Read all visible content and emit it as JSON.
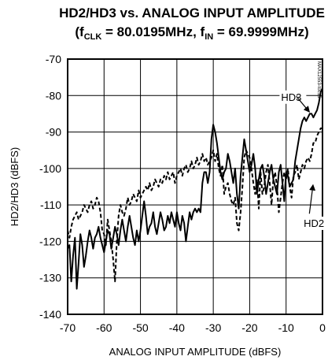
{
  "chart_data": {
    "type": "line",
    "title": "HD2/HD3 vs. ANALOG INPUT AMPLITUDE",
    "subtitle_parts": {
      "open": "(f",
      "clk_sub": "CLK",
      "mid": " = 80.0195MHz, f",
      "in_sub": "IN",
      "close": " = 69.9999MHz)"
    },
    "xlabel": "ANALOG INPUT AMPLITUDE (dBFS)",
    "ylabel": "HD2/HD3 (dBFS)",
    "xlim": [
      -70,
      0
    ],
    "ylim": [
      -140,
      -70
    ],
    "xticks": [
      -70,
      -60,
      -50,
      -40,
      -30,
      -20,
      -10,
      0
    ],
    "yticks": [
      -70,
      -80,
      -90,
      -100,
      -110,
      -120,
      -130,
      -140
    ],
    "grid": true,
    "side_code": "MAX12553-toc15",
    "annotations": [
      {
        "text": "HD3",
        "series": "HD3"
      },
      {
        "text": "HD2",
        "series": "HD2"
      }
    ],
    "series": [
      {
        "name": "HD3",
        "style": "solid",
        "x": [
          -70,
          -69.5,
          -69,
          -68.5,
          -68,
          -67.5,
          -67,
          -66.5,
          -66,
          -65.5,
          -65,
          -64.5,
          -64,
          -63.5,
          -63,
          -62.5,
          -62,
          -61.5,
          -61,
          -60.5,
          -60,
          -59.5,
          -59,
          -58.5,
          -58,
          -57.5,
          -57,
          -56.5,
          -56,
          -55.5,
          -55,
          -54.5,
          -54,
          -53.5,
          -53,
          -52.5,
          -52,
          -51.5,
          -51,
          -50.5,
          -50,
          -49.5,
          -49,
          -48.5,
          -48,
          -47.5,
          -47,
          -46.5,
          -46,
          -45.5,
          -45,
          -44.5,
          -44,
          -43.5,
          -43,
          -42.5,
          -42,
          -41.5,
          -41,
          -40.5,
          -40,
          -39.5,
          -39,
          -38.5,
          -38,
          -37.5,
          -37,
          -36.5,
          -36,
          -35.5,
          -35,
          -34.5,
          -34,
          -33.5,
          -33,
          -32.5,
          -32,
          -31.5,
          -31,
          -30.5,
          -30,
          -29.5,
          -29,
          -28.5,
          -28,
          -27.5,
          -27,
          -26.5,
          -26,
          -25.5,
          -25,
          -24.5,
          -24,
          -23.5,
          -23,
          -22.5,
          -22,
          -21.5,
          -21,
          -20.5,
          -20,
          -19.5,
          -19,
          -18.5,
          -18,
          -17.5,
          -17,
          -16.5,
          -16,
          -15.5,
          -15,
          -14.5,
          -14,
          -13.5,
          -13,
          -12.5,
          -12,
          -11.5,
          -11,
          -10.5,
          -10,
          -9.5,
          -9,
          -8.5,
          -8,
          -7.5,
          -7,
          -6.5,
          -6,
          -5.5,
          -5,
          -4.5,
          -4,
          -3.5,
          -3,
          -2.5,
          -2,
          -1.5,
          -1,
          -0.5,
          0
        ],
        "y": [
          -122,
          -121,
          -131,
          -124,
          -119,
          -133,
          -126,
          -118,
          -121,
          -127,
          -124,
          -120,
          -117,
          -119,
          -122,
          -119,
          -118,
          -116,
          -119,
          -121,
          -123,
          -120,
          -117,
          -118,
          -122,
          -119,
          -116,
          -118,
          -121,
          -117,
          -114,
          -117,
          -120,
          -116,
          -113,
          -116,
          -119,
          -121,
          -117,
          -120,
          -117,
          -113,
          -109,
          -113,
          -118,
          -116,
          -115,
          -112,
          -116,
          -118,
          -115,
          -112,
          -114,
          -117,
          -116,
          -113,
          -115,
          -112,
          -114,
          -116,
          -112,
          -115,
          -117,
          -113,
          -115,
          -120,
          -116,
          -112,
          -114,
          -112,
          -111,
          -112,
          -111,
          -112,
          -104,
          -101,
          -101,
          -104,
          -101,
          -92,
          -88,
          -90,
          -93,
          -97,
          -101,
          -103,
          -101,
          -100,
          -96,
          -98,
          -101,
          -104,
          -100,
          -107,
          -111,
          -102,
          -97,
          -92,
          -95,
          -98,
          -101,
          -99,
          -96,
          -100,
          -107,
          -103,
          -100,
          -99,
          -102,
          -107,
          -104,
          -101,
          -99,
          -103,
          -105,
          -107,
          -101,
          -99,
          -104,
          -109,
          -101,
          -102,
          -105,
          -104,
          -103,
          -98,
          -95,
          -92,
          -89,
          -87,
          -86,
          -87,
          -86,
          -85,
          -85,
          -86,
          -85,
          -84,
          -82,
          -79,
          -78
        ]
      },
      {
        "name": "HD2",
        "style": "dashed",
        "x": [
          -70,
          -69.5,
          -69,
          -68.5,
          -68,
          -67.5,
          -67,
          -66.5,
          -66,
          -65.5,
          -65,
          -64.5,
          -64,
          -63.5,
          -63,
          -62.5,
          -62,
          -61.5,
          -61,
          -60.5,
          -60,
          -59.5,
          -59,
          -58.5,
          -58,
          -57.5,
          -57,
          -56.5,
          -56,
          -55.5,
          -55,
          -54.5,
          -54,
          -53.5,
          -53,
          -52.5,
          -52,
          -51.5,
          -51,
          -50.5,
          -50,
          -49.5,
          -49,
          -48.5,
          -48,
          -47.5,
          -47,
          -46.5,
          -46,
          -45.5,
          -45,
          -44.5,
          -44,
          -43.5,
          -43,
          -42.5,
          -42,
          -41.5,
          -41,
          -40.5,
          -40,
          -39.5,
          -39,
          -38.5,
          -38,
          -37.5,
          -37,
          -36.5,
          -36,
          -35.5,
          -35,
          -34.5,
          -34,
          -33.5,
          -33,
          -32.5,
          -32,
          -31.5,
          -31,
          -30.5,
          -30,
          -29.5,
          -29,
          -28.5,
          -28,
          -27.5,
          -27,
          -26.5,
          -26,
          -25.5,
          -25,
          -24.5,
          -24,
          -23.5,
          -23,
          -22.5,
          -22,
          -21.5,
          -21,
          -20.5,
          -20,
          -19.5,
          -19,
          -18.5,
          -18,
          -17.5,
          -17,
          -16.5,
          -16,
          -15.5,
          -15,
          -14.5,
          -14,
          -13.5,
          -13,
          -12.5,
          -12,
          -11.5,
          -11,
          -10.5,
          -10,
          -9.5,
          -9,
          -8.5,
          -8,
          -7.5,
          -7,
          -6.5,
          -6,
          -5.5,
          -5,
          -4.5,
          -4,
          -3.5,
          -3,
          -2.5,
          -2,
          -1.5,
          -1,
          -0.5,
          0
        ],
        "y": [
          -117,
          -119,
          -116,
          -114,
          -113,
          -112,
          -114,
          -113,
          -112,
          -110,
          -111,
          -112,
          -110,
          -109,
          -111,
          -110,
          -108,
          -109,
          -112,
          -117,
          -118,
          -121,
          -114,
          -117,
          -120,
          -125,
          -131,
          -120,
          -113,
          -110,
          -112,
          -113,
          -111,
          -108,
          -110,
          -109,
          -107,
          -108,
          -109,
          -106,
          -108,
          -107,
          -106,
          -105,
          -106,
          -104,
          -106,
          -105,
          -103,
          -104,
          -105,
          -103,
          -104,
          -102,
          -103,
          -101,
          -103,
          -102,
          -101,
          -104,
          -102,
          -101,
          -100,
          -102,
          -100,
          -99,
          -101,
          -100,
          -98,
          -100,
          -99,
          -97,
          -99,
          -98,
          -96,
          -98,
          -97,
          -99,
          -98,
          -97,
          -95,
          -98,
          -96,
          -100,
          -102,
          -99,
          -107,
          -105,
          -104,
          -107,
          -109,
          -110,
          -108,
          -115,
          -117,
          -112,
          -105,
          -97,
          -95,
          -96,
          -97,
          -100,
          -104,
          -107,
          -103,
          -111,
          -101,
          -107,
          -105,
          -101,
          -99,
          -104,
          -110,
          -103,
          -101,
          -105,
          -112,
          -108,
          -104,
          -101,
          -103,
          -100,
          -105,
          -108,
          -102,
          -101,
          -99,
          -103,
          -101,
          -99,
          -100,
          -98,
          -97,
          -98,
          -96,
          -93,
          -93,
          -91,
          -90,
          -89,
          -89
        ]
      }
    ]
  }
}
